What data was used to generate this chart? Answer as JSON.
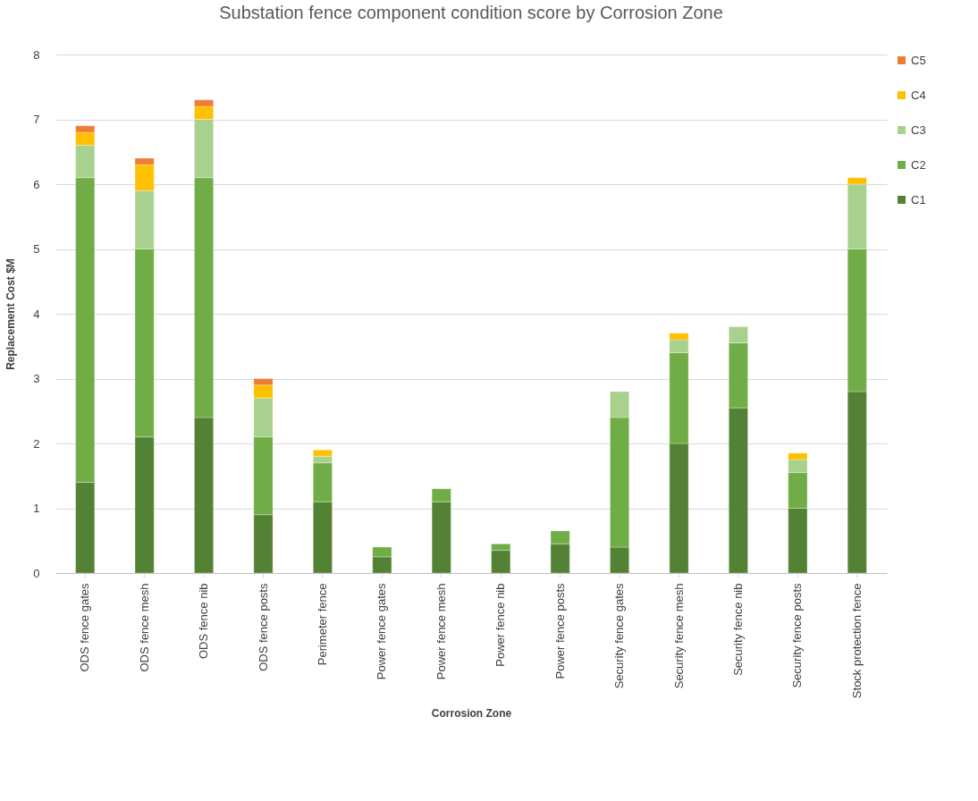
{
  "chart_data": {
    "type": "bar",
    "title": "Substation fence component condition score by Corrosion Zone",
    "xlabel": "Corrosion Zone",
    "ylabel": "Replacement Cost $M",
    "categories": [
      "ODS fence gates",
      "ODS fence mesh",
      "ODS fence nib",
      "ODS fence posts",
      "Perimeter fence",
      "Power fence gates",
      "Power fence mesh",
      "Power fence nib",
      "Power fence posts",
      "Security fence gates",
      "Security fence mesh",
      "Security fence nib",
      "Security fence posts",
      "Stock protection fence"
    ],
    "stacked": true,
    "series": [
      {
        "name": "C1",
        "color": "#548235",
        "values": [
          1.4,
          2.1,
          2.4,
          0.9,
          1.1,
          0.25,
          1.1,
          0.35,
          0.45,
          0.4,
          2.0,
          2.55,
          1.0,
          2.8
        ]
      },
      {
        "name": "C2",
        "color": "#70ad47",
        "values": [
          4.7,
          2.9,
          3.7,
          1.2,
          0.6,
          0.15,
          0.2,
          0.1,
          0.2,
          2.0,
          1.4,
          1.0,
          0.55,
          2.2
        ]
      },
      {
        "name": "C3",
        "color": "#a9d18e",
        "values": [
          0.5,
          0.9,
          0.9,
          0.6,
          0.1,
          null,
          null,
          null,
          null,
          0.4,
          0.2,
          0.25,
          0.2,
          1.0
        ]
      },
      {
        "name": "C4",
        "color": "#ffc000",
        "values": [
          0.2,
          0.4,
          0.2,
          0.2,
          0.1,
          null,
          null,
          null,
          null,
          null,
          0.1,
          null,
          0.1,
          0.1
        ]
      },
      {
        "name": "C5",
        "color": "#ed7d31",
        "values": [
          0.1,
          0.1,
          0.1,
          0.1,
          null,
          null,
          null,
          null,
          null,
          null,
          null,
          null,
          null,
          null
        ]
      }
    ],
    "ylim": [
      0,
      8
    ],
    "yticks": [
      0,
      1,
      2,
      3,
      4,
      5,
      6,
      7,
      8
    ],
    "grid": "y",
    "legend": "right"
  }
}
